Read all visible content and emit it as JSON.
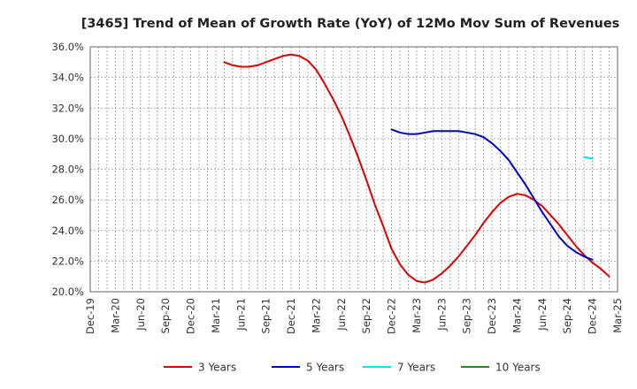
{
  "chart_data": {
    "type": "line",
    "title": "[3465]  Trend of Mean of Growth Rate (YoY) of 12Mo Mov Sum of Revenues",
    "xlabel": "",
    "ylabel": "",
    "ylim": [
      20.0,
      36.0
    ],
    "yticks": [
      "20.0%",
      "22.0%",
      "24.0%",
      "26.0%",
      "28.0%",
      "30.0%",
      "32.0%",
      "34.0%",
      "36.0%"
    ],
    "xticks": [
      "Dec-19",
      "Mar-20",
      "Jun-20",
      "Sep-20",
      "Dec-20",
      "Mar-21",
      "Jun-21",
      "Sep-21",
      "Dec-21",
      "Mar-22",
      "Jun-22",
      "Sep-22",
      "Dec-22",
      "Mar-23",
      "Jun-23",
      "Sep-23",
      "Dec-23",
      "Mar-24",
      "Jun-24",
      "Sep-24",
      "Dec-24",
      "Mar-25"
    ],
    "months": [
      "Dec-20",
      "Jan-21",
      "Feb-21",
      "Mar-21",
      "Apr-21",
      "May-21",
      "Jun-21",
      "Jul-21",
      "Aug-21",
      "Sep-21",
      "Oct-21",
      "Nov-21",
      "Dec-21",
      "Jan-22",
      "Feb-22",
      "Mar-22",
      "Apr-22",
      "May-22",
      "Jun-22",
      "Jul-22",
      "Aug-22",
      "Sep-22",
      "Oct-22",
      "Nov-22",
      "Dec-22",
      "Jan-23",
      "Feb-23",
      "Mar-23",
      "Apr-23",
      "May-23",
      "Jun-23",
      "Jul-23",
      "Aug-23",
      "Sep-23",
      "Oct-23",
      "Nov-23",
      "Dec-23",
      "Jan-24",
      "Feb-24",
      "Mar-24",
      "Apr-24",
      "May-24",
      "Jun-24",
      "Jul-24",
      "Aug-24",
      "Sep-24",
      "Oct-24",
      "Nov-24",
      "Dec-24"
    ],
    "series": [
      {
        "name": "3 Years",
        "color": "#dd0000",
        "start_index": 16,
        "values": [
          35.0,
          34.8,
          34.7,
          34.7,
          34.8,
          35.0,
          35.2,
          35.4,
          35.5,
          35.4,
          35.1,
          34.5,
          33.6,
          32.6,
          31.5,
          30.2,
          28.8,
          27.3,
          25.7,
          24.3,
          22.8,
          21.8,
          21.1,
          20.7,
          20.6,
          20.8,
          21.2,
          21.7,
          22.3,
          23.0,
          23.7,
          24.5,
          25.2,
          25.8,
          26.2,
          26.4,
          26.3,
          26.0,
          25.6,
          25.0,
          24.4,
          23.7,
          23.0,
          22.4,
          21.9,
          21.5,
          21.0
        ]
      },
      {
        "name": "5 Years",
        "color": "#0000cc",
        "start_index": 36,
        "values": [
          30.6,
          30.4,
          30.3,
          30.3,
          30.4,
          30.5,
          30.5,
          30.5,
          30.5,
          30.4,
          30.3,
          30.1,
          29.7,
          29.2,
          28.6,
          27.8,
          27.0,
          26.1,
          25.2,
          24.4,
          23.6,
          23.0,
          22.6,
          22.3,
          22.1
        ]
      },
      {
        "name": "7 Years",
        "color": "#00e5e5",
        "start_index": 59,
        "values": [
          28.8,
          28.7
        ]
      },
      {
        "name": "10 Years",
        "color": "#228b22",
        "start_index": 0,
        "values": []
      }
    ],
    "legend": [
      "3 Years",
      "5 Years",
      "7 Years",
      "10 Years"
    ],
    "legend_position": "bottom",
    "grid": true
  }
}
